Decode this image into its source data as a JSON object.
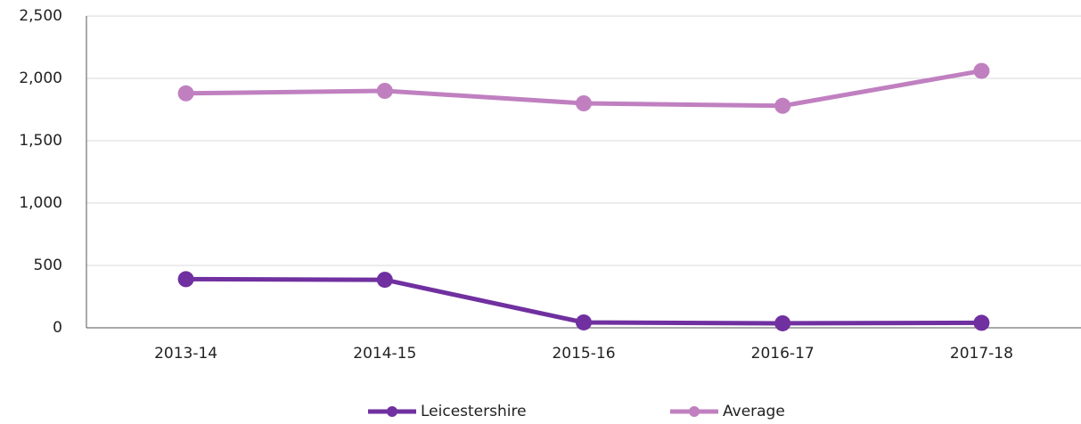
{
  "chart_data": {
    "type": "line",
    "categories": [
      "2013-14",
      "2014-15",
      "2015-16",
      "2016-17",
      "2017-18"
    ],
    "series": [
      {
        "name": "Leicestershire",
        "color": "#7030a0",
        "values": [
          390,
          385,
          43,
          36,
          40
        ]
      },
      {
        "name": "Average",
        "color": "#c080c0",
        "values": [
          1880,
          1900,
          1800,
          1780,
          2060
        ]
      }
    ],
    "ylim": [
      0,
      2500
    ],
    "yticks": [
      0,
      500,
      {
        "value": 1000,
        "label": "1,000"
      },
      {
        "value": 1500,
        "label": "1,500"
      },
      {
        "value": 2000,
        "label": "2,000"
      },
      {
        "value": 2500,
        "label": "2,500"
      }
    ],
    "grid": true,
    "legend": "bottom"
  }
}
